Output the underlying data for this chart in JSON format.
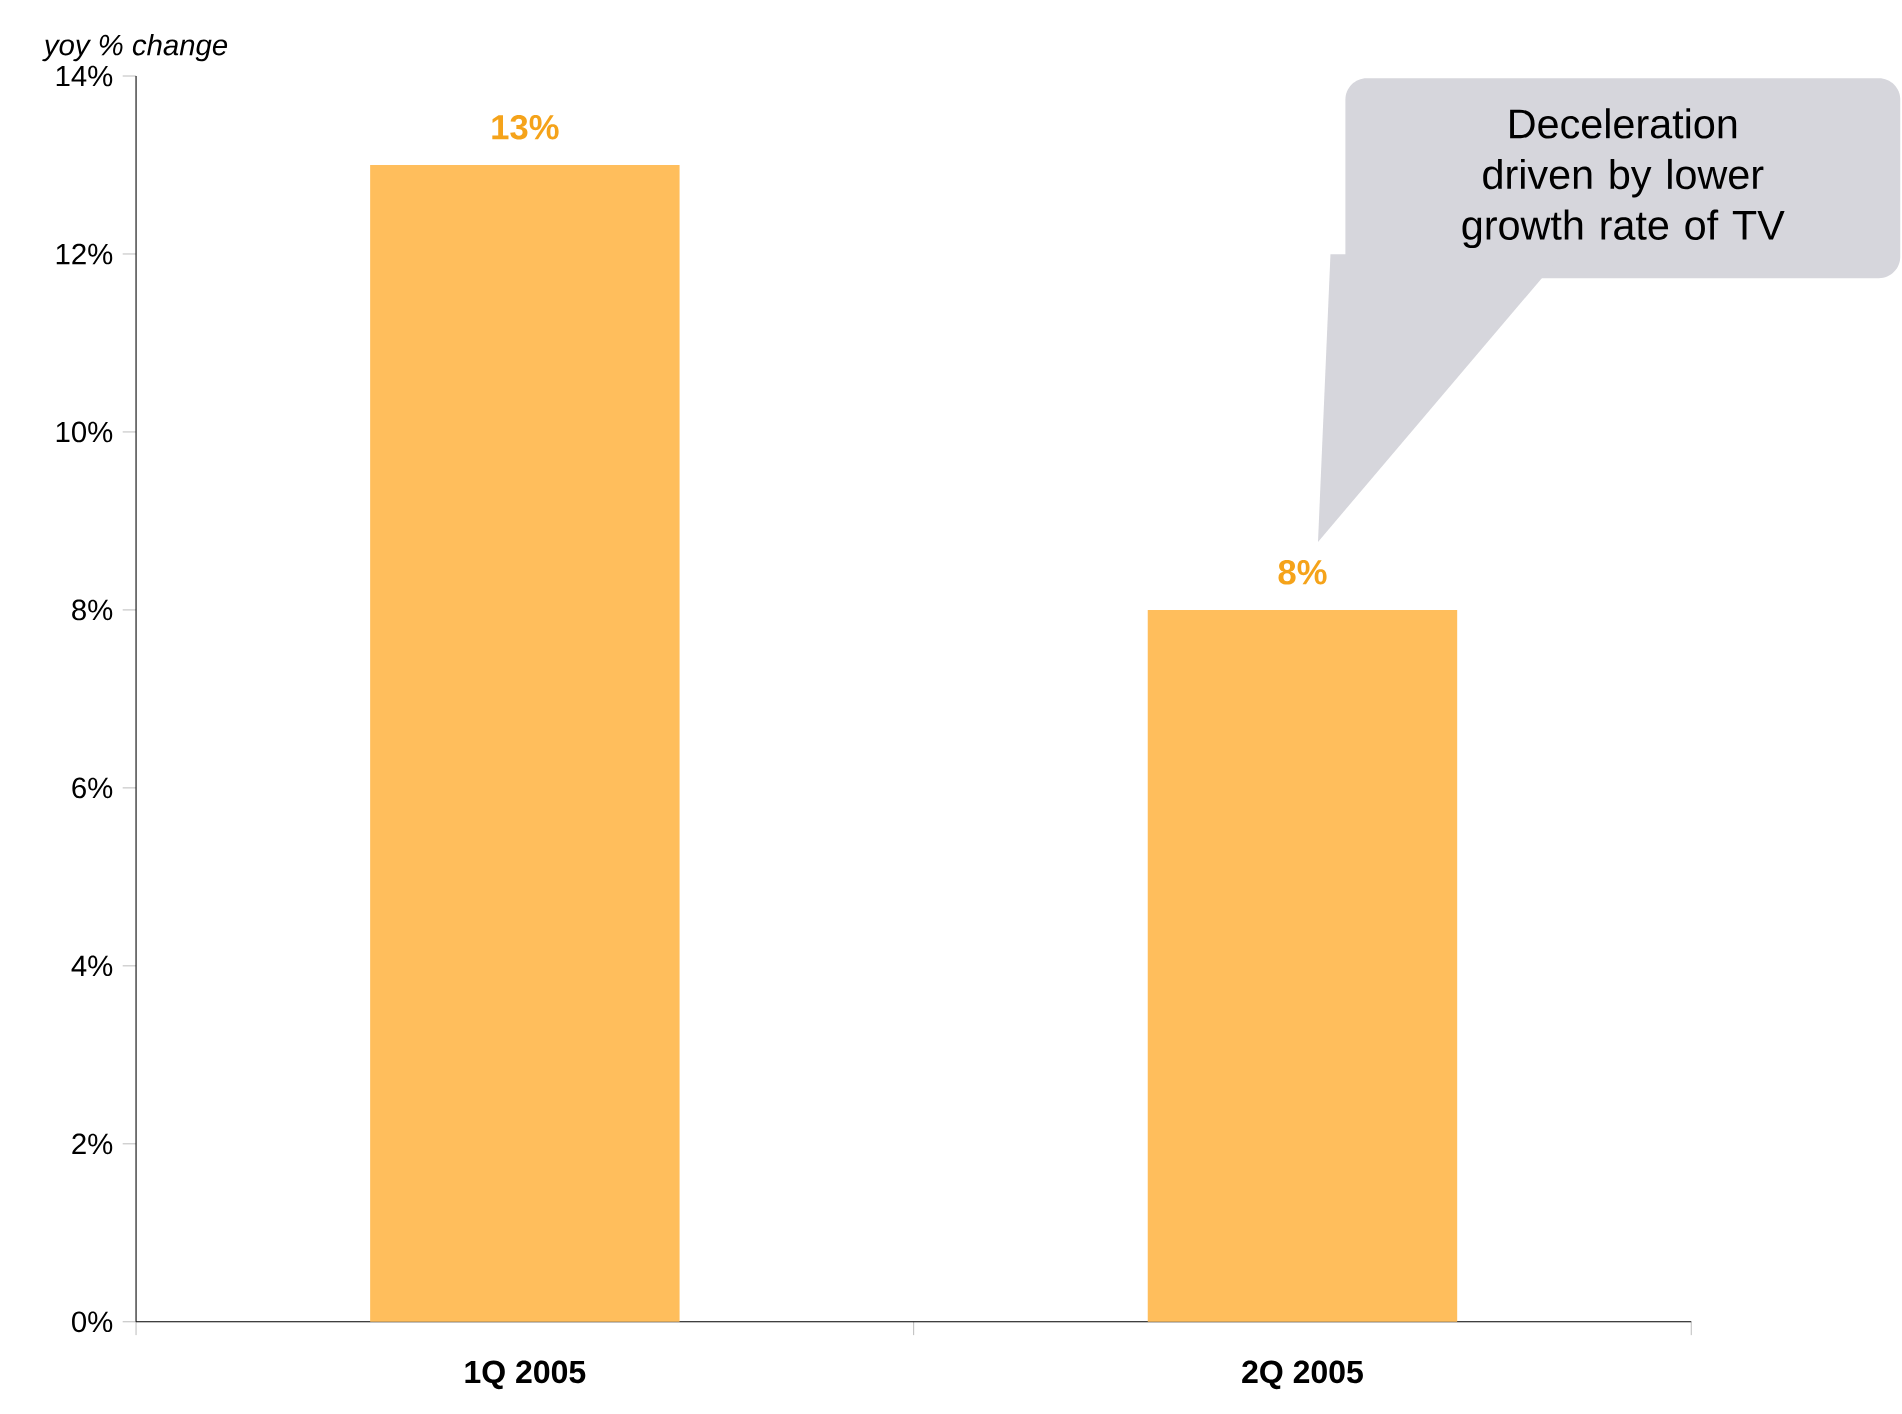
{
  "chart_data": {
    "type": "bar",
    "ylabel": "yoy % change",
    "categories": [
      "1Q 2005",
      "2Q 2005"
    ],
    "values": [
      13,
      8
    ],
    "color": "#ffbe5c",
    "value_labels": [
      "13%",
      "8%"
    ],
    "ylim": [
      0,
      14
    ],
    "yticks": [
      {
        "value": 0,
        "label": "0%"
      },
      {
        "value": 2,
        "label": "2%"
      },
      {
        "value": 4,
        "label": "4%"
      },
      {
        "value": 6,
        "label": "6%"
      },
      {
        "value": 8,
        "label": "8%"
      },
      {
        "value": 10,
        "label": "10%"
      },
      {
        "value": 12,
        "label": "12%"
      },
      {
        "value": 14,
        "label": "14%"
      }
    ],
    "annotations": [
      "Deceleration driven by lower growth rate of TV"
    ]
  }
}
